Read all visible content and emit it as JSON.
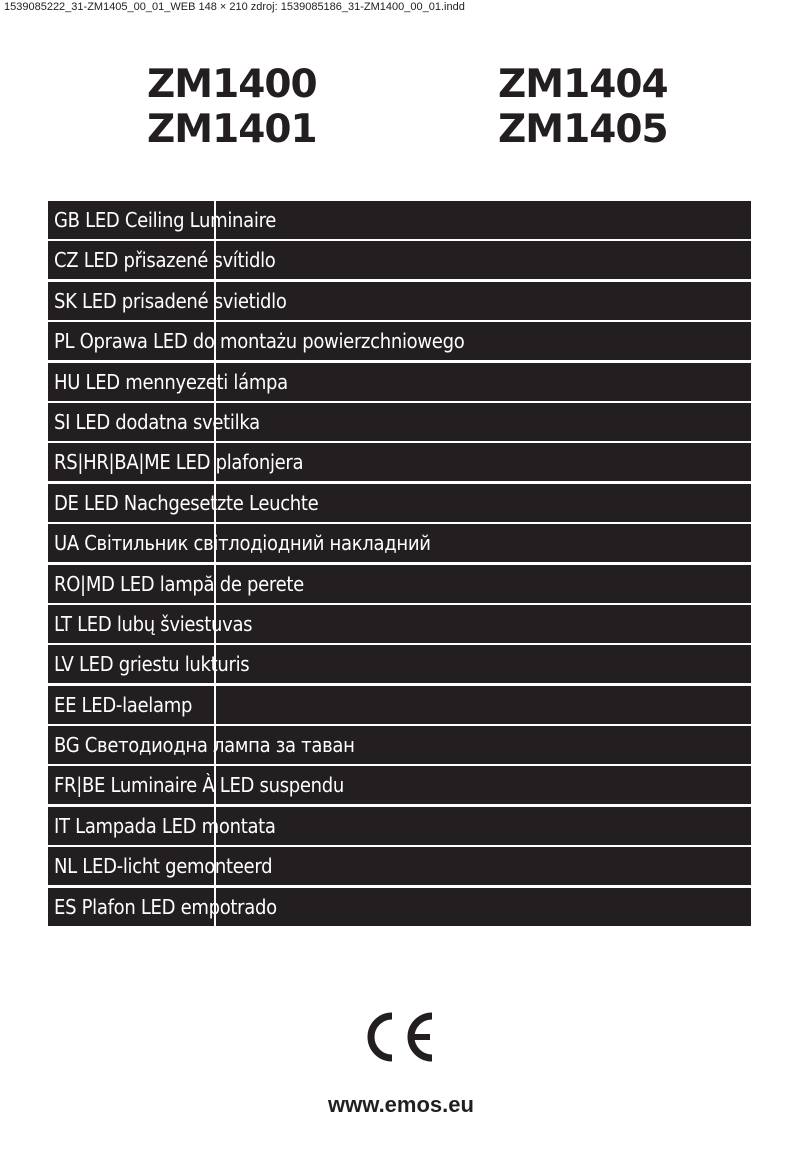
{
  "slug": "1539085222_31-ZM1405_00_01_WEB  148 × 210   zdroj: 1539085186_31-ZM1400_00_01.indd",
  "models_left": [
    "ZM1400",
    "ZM1401"
  ],
  "models_right": [
    "ZM1404",
    "ZM1405"
  ],
  "titles": [
    "GB LED Ceiling Luminaire",
    "CZ LED přisazené svítidlo",
    "SK LED prisadené svietidlo",
    "PL Oprawa LED do montażu powierzchniowego",
    "HU LED mennyezeti lámpa",
    "SI LED dodatna svetilka",
    "RS|HR|BA|ME LED plafonjera",
    "DE LED Nachgesetzte Leuchte",
    "UA Світильник світлодіодний накладний",
    "RO|MD LED lampă de perete",
    "LT LED lubų šviestuvas",
    "LV LED griestu lukturis",
    "EE LED-laelamp",
    "BG Светодиодна лампа за таван",
    "FR|BE Luminaire À LED suspendu",
    "IT Lampada LED montata",
    "NL LED-licht gemonteerd",
    "ES Plafon LED empotrado"
  ],
  "ce_mark": "CE",
  "website": "www.emos.eu",
  "colors": {
    "bar": "#231f20",
    "text": "#ffffff"
  }
}
